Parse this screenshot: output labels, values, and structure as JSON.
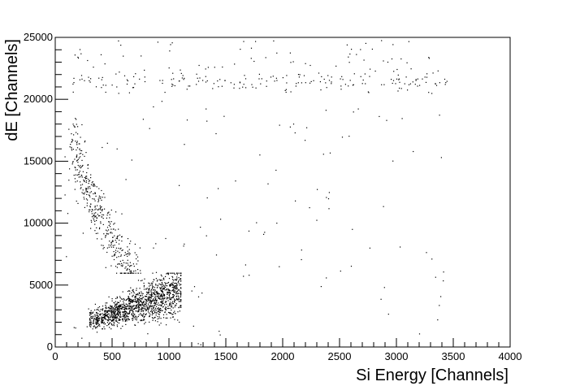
{
  "chart_data": {
    "type": "scatter",
    "title": "",
    "xlabel": "Si Energy [Channels]",
    "ylabel": "dE [Channels]",
    "xlim": [
      0,
      4000
    ],
    "ylim": [
      0,
      25000
    ],
    "x_ticks": [
      0,
      500,
      1000,
      1500,
      2000,
      2500,
      3000,
      3500,
      4000
    ],
    "y_ticks": [
      0,
      5000,
      10000,
      15000,
      20000,
      25000
    ],
    "grid": false,
    "legend": "none",
    "marker_color": "#000000",
    "clusters": [
      {
        "region": "low-energy dense cluster",
        "x_range": [
          300,
          1100
        ],
        "y_range": [
          1500,
          6000
        ],
        "points": 1400
      },
      {
        "region": "proton band",
        "x_range": [
          150,
          700
        ],
        "y_range": [
          6000,
          18500
        ],
        "points": 420
      },
      {
        "region": "saturation band",
        "x_range": [
          150,
          3450
        ],
        "y_range": [
          20500,
          24800
        ],
        "points": 260
      },
      {
        "region": "background",
        "x_range": [
          80,
          3500
        ],
        "y_range": [
          200,
          20000
        ],
        "points": 120
      }
    ]
  }
}
